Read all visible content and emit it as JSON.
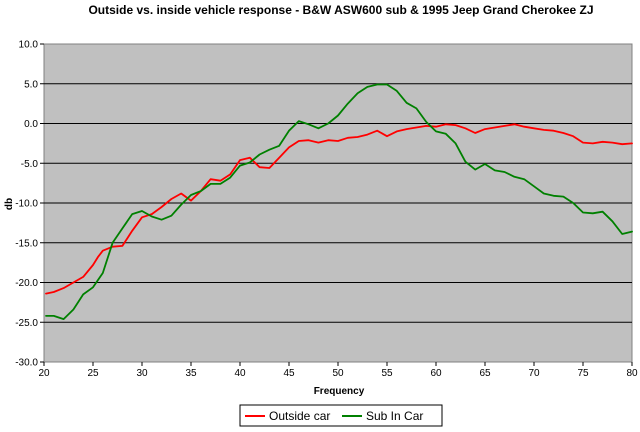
{
  "chart_data": {
    "type": "line",
    "title": "Outside vs. inside vehicle response - B&W ASW600 sub & 1995 Jeep Grand Cherokee ZJ",
    "xlabel": "Frequency",
    "ylabel": "db",
    "xlim": [
      20,
      80
    ],
    "ylim": [
      -30,
      10
    ],
    "x_ticks": [
      "20",
      "25",
      "30",
      "35",
      "40",
      "45",
      "50",
      "55",
      "60",
      "65",
      "70",
      "75",
      "80"
    ],
    "y_ticks": [
      "10.0",
      "5.0",
      "0.0",
      "-5.0",
      "-10.0",
      "-15.0",
      "-20.0",
      "-25.0",
      "-30.0"
    ],
    "grid": "horizontal",
    "legend_position": "bottom",
    "plot_background": "#c0c0c0",
    "series": [
      {
        "name": "Outside car",
        "color": "#ff0000",
        "points": [
          [
            20.2,
            -21.4
          ],
          [
            21.0,
            -21.2
          ],
          [
            22.0,
            -20.7
          ],
          [
            23.0,
            -20.0
          ],
          [
            24.0,
            -19.3
          ],
          [
            25.0,
            -17.8
          ],
          [
            25.5,
            -16.8
          ],
          [
            26.0,
            -16.0
          ],
          [
            27.0,
            -15.5
          ],
          [
            28.0,
            -15.4
          ],
          [
            29.0,
            -13.5
          ],
          [
            30.0,
            -11.8
          ],
          [
            31.0,
            -11.4
          ],
          [
            32.0,
            -10.5
          ],
          [
            33.0,
            -9.5
          ],
          [
            34.0,
            -8.8
          ],
          [
            35.0,
            -9.7
          ],
          [
            36.0,
            -8.5
          ],
          [
            37.0,
            -7.0
          ],
          [
            38.0,
            -7.2
          ],
          [
            39.0,
            -6.4
          ],
          [
            40.0,
            -4.6
          ],
          [
            41.0,
            -4.3
          ],
          [
            42.0,
            -5.5
          ],
          [
            43.0,
            -5.6
          ],
          [
            44.0,
            -4.3
          ],
          [
            45.0,
            -3.0
          ],
          [
            46.0,
            -2.2
          ],
          [
            47.0,
            -2.1
          ],
          [
            48.0,
            -2.4
          ],
          [
            49.0,
            -2.1
          ],
          [
            50.0,
            -2.2
          ],
          [
            51.0,
            -1.8
          ],
          [
            52.0,
            -1.7
          ],
          [
            53.0,
            -1.4
          ],
          [
            54.0,
            -0.9
          ],
          [
            55.0,
            -1.6
          ],
          [
            56.0,
            -1.0
          ],
          [
            57.0,
            -0.7
          ],
          [
            58.0,
            -0.5
          ],
          [
            59.0,
            -0.3
          ],
          [
            60.0,
            -0.4
          ],
          [
            61.0,
            -0.1
          ],
          [
            62.0,
            -0.2
          ],
          [
            63.0,
            -0.6
          ],
          [
            64.0,
            -1.2
          ],
          [
            65.0,
            -0.7
          ],
          [
            66.0,
            -0.5
          ],
          [
            67.0,
            -0.3
          ],
          [
            68.0,
            -0.1
          ],
          [
            69.0,
            -0.4
          ],
          [
            70.0,
            -0.6
          ],
          [
            71.0,
            -0.8
          ],
          [
            72.0,
            -0.9
          ],
          [
            73.0,
            -1.2
          ],
          [
            74.0,
            -1.6
          ],
          [
            75.0,
            -2.4
          ],
          [
            76.0,
            -2.5
          ],
          [
            77.0,
            -2.3
          ],
          [
            78.0,
            -2.4
          ],
          [
            79.0,
            -2.6
          ],
          [
            80.0,
            -2.5
          ]
        ]
      },
      {
        "name": "Sub In Car",
        "color": "#008000",
        "points": [
          [
            20.2,
            -24.2
          ],
          [
            21.0,
            -24.2
          ],
          [
            22.0,
            -24.6
          ],
          [
            23.0,
            -23.4
          ],
          [
            24.0,
            -21.5
          ],
          [
            25.0,
            -20.6
          ],
          [
            26.0,
            -18.8
          ],
          [
            27.0,
            -15.0
          ],
          [
            28.0,
            -13.2
          ],
          [
            29.0,
            -11.4
          ],
          [
            30.0,
            -11.0
          ],
          [
            31.0,
            -11.7
          ],
          [
            32.0,
            -12.1
          ],
          [
            33.0,
            -11.6
          ],
          [
            34.0,
            -10.2
          ],
          [
            35.0,
            -9.0
          ],
          [
            36.0,
            -8.5
          ],
          [
            37.0,
            -7.6
          ],
          [
            38.0,
            -7.6
          ],
          [
            39.0,
            -6.8
          ],
          [
            40.0,
            -5.3
          ],
          [
            41.0,
            -4.9
          ],
          [
            42.0,
            -3.9
          ],
          [
            43.0,
            -3.3
          ],
          [
            44.0,
            -2.8
          ],
          [
            45.0,
            -0.9
          ],
          [
            46.0,
            0.3
          ],
          [
            47.0,
            -0.1
          ],
          [
            48.0,
            -0.6
          ],
          [
            49.0,
            0.0
          ],
          [
            50.0,
            1.0
          ],
          [
            51.0,
            2.5
          ],
          [
            52.0,
            3.8
          ],
          [
            53.0,
            4.6
          ],
          [
            54.0,
            4.9
          ],
          [
            55.0,
            4.9
          ],
          [
            56.0,
            4.1
          ],
          [
            57.0,
            2.6
          ],
          [
            58.0,
            1.9
          ],
          [
            59.0,
            0.2
          ],
          [
            60.0,
            -1.0
          ],
          [
            61.0,
            -1.3
          ],
          [
            62.0,
            -2.5
          ],
          [
            63.0,
            -4.8
          ],
          [
            64.0,
            -5.8
          ],
          [
            65.0,
            -5.1
          ],
          [
            66.0,
            -5.9
          ],
          [
            67.0,
            -6.1
          ],
          [
            68.0,
            -6.7
          ],
          [
            69.0,
            -7.0
          ],
          [
            70.0,
            -7.9
          ],
          [
            71.0,
            -8.8
          ],
          [
            72.0,
            -9.1
          ],
          [
            73.0,
            -9.2
          ],
          [
            74.0,
            -10.0
          ],
          [
            75.0,
            -11.2
          ],
          [
            76.0,
            -11.3
          ],
          [
            77.0,
            -11.1
          ],
          [
            78.0,
            -12.3
          ],
          [
            79.0,
            -13.9
          ],
          [
            80.0,
            -13.6
          ]
        ]
      }
    ]
  }
}
